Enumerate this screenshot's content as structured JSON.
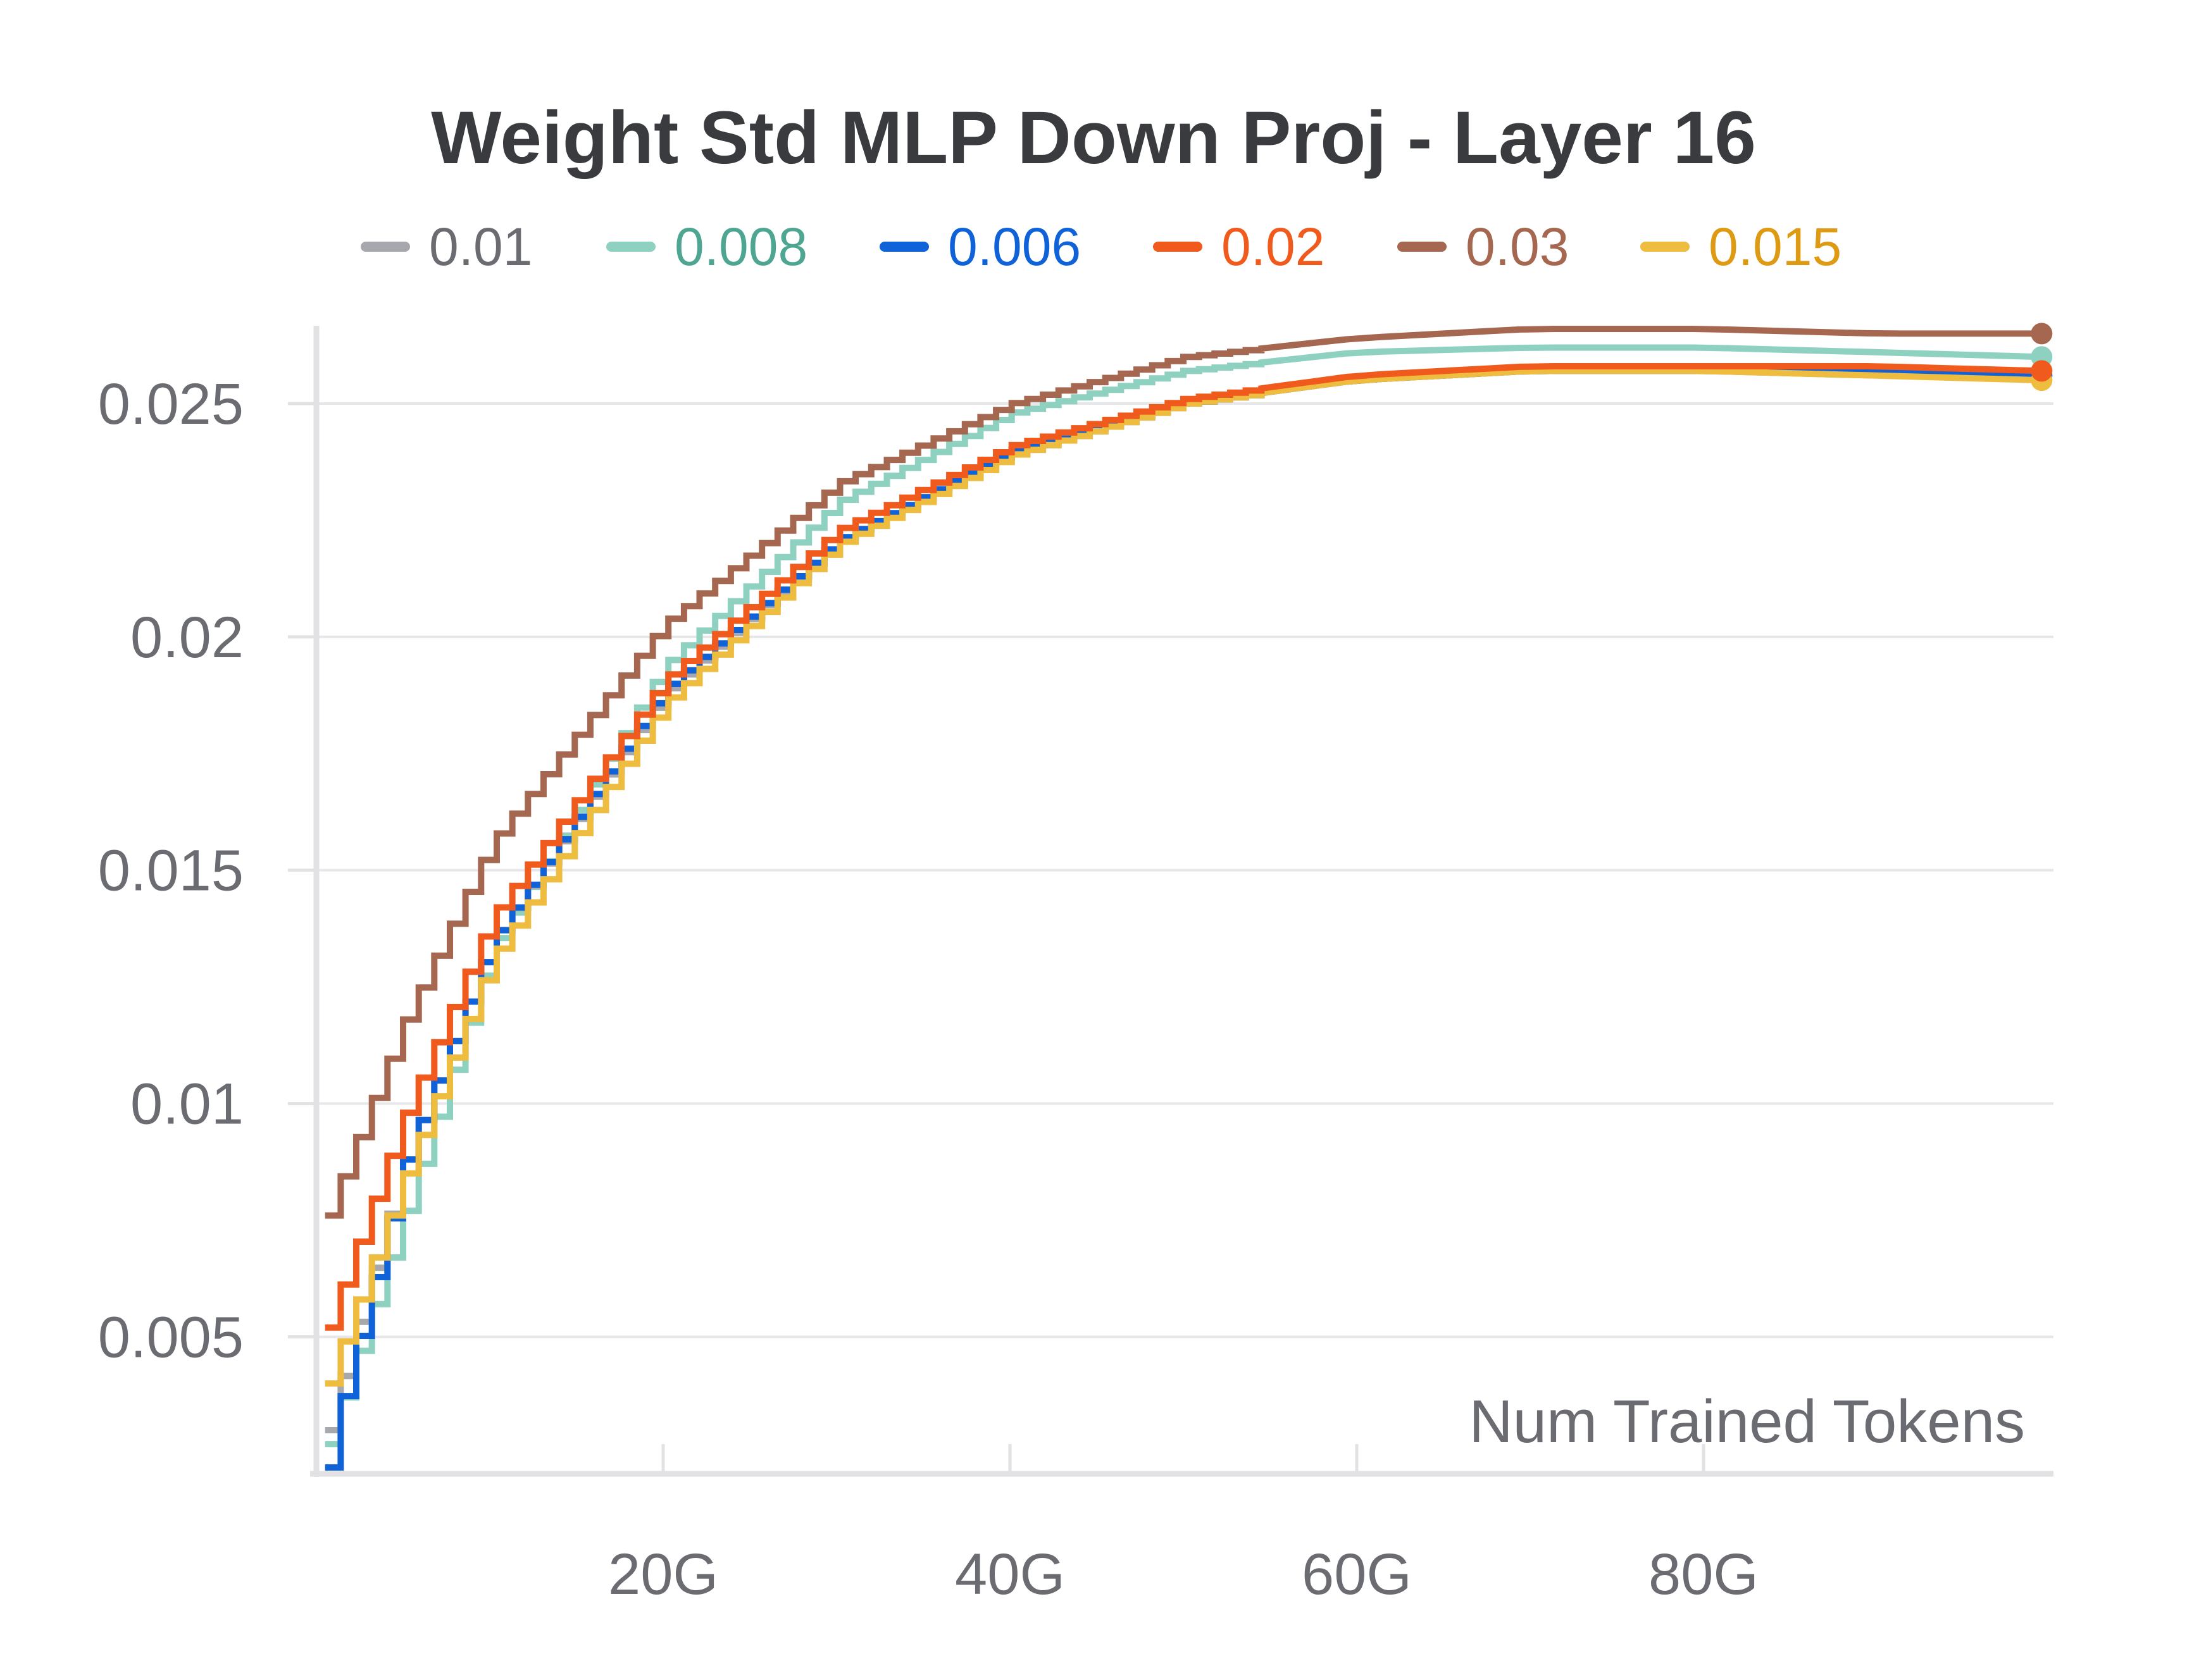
{
  "chart_data": {
    "type": "line",
    "title": "Weight Std MLP Down Proj - Layer 16",
    "xlabel": "Num Trained Tokens",
    "ylabel": "",
    "xlim": [
      0,
      100
    ],
    "ylim": [
      0.0022,
      0.0266
    ],
    "x_ticks": [
      {
        "value": 20,
        "label": "20G"
      },
      {
        "value": 40,
        "label": "40G"
      },
      {
        "value": 60,
        "label": "60G"
      },
      {
        "value": 80,
        "label": "80G"
      }
    ],
    "y_ticks": [
      {
        "value": 0.005,
        "label": "0.005"
      },
      {
        "value": 0.01,
        "label": "0.01"
      },
      {
        "value": 0.015,
        "label": "0.015"
      },
      {
        "value": 0.02,
        "label": "0.02"
      },
      {
        "value": 0.025,
        "label": "0.025"
      }
    ],
    "grid": true,
    "legend_position": "top",
    "step_size": 0.9,
    "x_start": 0.5,
    "x_end": 99.5,
    "series": [
      {
        "name": "0.01",
        "color": "#a6a8ad",
        "label_color": "#6b6c72",
        "values": [
          [
            0.5,
            0.003
          ],
          [
            5,
            0.0088
          ],
          [
            10,
            0.0135
          ],
          [
            20,
            0.0188
          ],
          [
            30,
            0.0221
          ],
          [
            40,
            0.0239
          ],
          [
            50,
            0.025
          ],
          [
            60,
            0.0255
          ],
          [
            70,
            0.0257
          ],
          [
            80,
            0.0257
          ],
          [
            90,
            0.0256
          ],
          [
            99.5,
            0.0256
          ]
        ]
      },
      {
        "name": "0.008",
        "color": "#8fd1c0",
        "label_color": "#4ea692",
        "values": [
          [
            0.5,
            0.0027
          ],
          [
            5,
            0.0077
          ],
          [
            10,
            0.0133
          ],
          [
            20,
            0.0194
          ],
          [
            30,
            0.0229
          ],
          [
            40,
            0.0248
          ],
          [
            50,
            0.0257
          ],
          [
            60,
            0.0261
          ],
          [
            70,
            0.0262
          ],
          [
            80,
            0.0262
          ],
          [
            90,
            0.0261
          ],
          [
            99.5,
            0.026
          ]
        ]
      },
      {
        "name": "0.006",
        "color": "#0f62d8",
        "label_color": "#0f62d8",
        "values": [
          [
            0.5,
            0.0022
          ],
          [
            1.5,
            0.0039
          ],
          [
            5,
            0.0088
          ],
          [
            10,
            0.0135
          ],
          [
            20,
            0.0189
          ],
          [
            30,
            0.0221
          ],
          [
            40,
            0.024
          ],
          [
            50,
            0.025
          ],
          [
            60,
            0.0255
          ],
          [
            70,
            0.0257
          ],
          [
            80,
            0.0257
          ],
          [
            90,
            0.0257
          ],
          [
            99.5,
            0.0256
          ]
        ]
      },
      {
        "name": "0.02",
        "color": "#f05a1c",
        "label_color": "#f05a1c",
        "values": [
          [
            0.5,
            0.0052
          ],
          [
            5,
            0.0098
          ],
          [
            10,
            0.014
          ],
          [
            20,
            0.0191
          ],
          [
            30,
            0.0223
          ],
          [
            40,
            0.0241
          ],
          [
            50,
            0.0251
          ],
          [
            60,
            0.0256
          ],
          [
            70,
            0.0258
          ],
          [
            80,
            0.0258
          ],
          [
            90,
            0.0258
          ],
          [
            99.5,
            0.0257
          ]
        ]
      },
      {
        "name": "0.03",
        "color": "#a5674f",
        "label_color": "#a5674f",
        "values": [
          [
            0.5,
            0.0076
          ],
          [
            5,
            0.0118
          ],
          [
            10,
            0.0156
          ],
          [
            20,
            0.0203
          ],
          [
            30,
            0.0233
          ],
          [
            40,
            0.025
          ],
          [
            50,
            0.026
          ],
          [
            60,
            0.0264
          ],
          [
            70,
            0.0266
          ],
          [
            80,
            0.0266
          ],
          [
            90,
            0.0265
          ],
          [
            99.5,
            0.0265
          ]
        ]
      },
      {
        "name": "0.015",
        "color": "#eebc3f",
        "label_color": "#dd9a12",
        "values": [
          [
            0.5,
            0.004
          ],
          [
            5,
            0.0085
          ],
          [
            10,
            0.0131
          ],
          [
            20,
            0.0186
          ],
          [
            30,
            0.022
          ],
          [
            40,
            0.0239
          ],
          [
            50,
            0.025
          ],
          [
            60,
            0.0255
          ],
          [
            70,
            0.0257
          ],
          [
            80,
            0.0257
          ],
          [
            90,
            0.0256
          ],
          [
            99.5,
            0.0255
          ]
        ]
      }
    ]
  }
}
